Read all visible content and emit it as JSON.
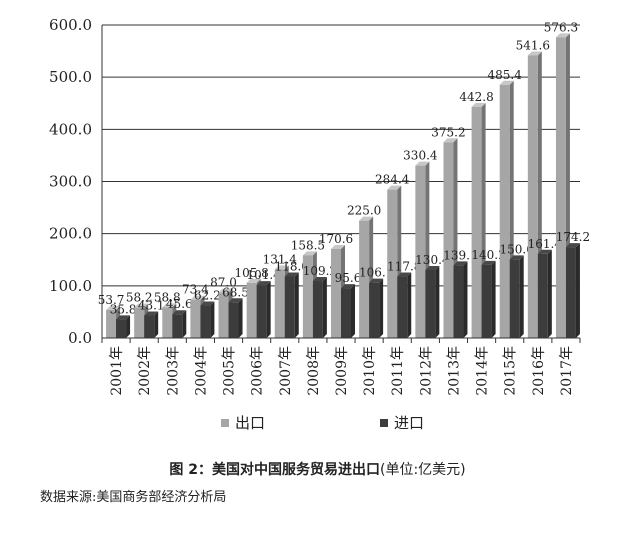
{
  "chart_data": {
    "type": "bar",
    "categories": [
      "2001年",
      "2002年",
      "2003年",
      "2004年",
      "2005年",
      "2006年",
      "2007年",
      "2008年",
      "2009年",
      "2010年",
      "2011年",
      "2012年",
      "2013年",
      "2014年",
      "2015年",
      "2016年",
      "2017年"
    ],
    "series": [
      {
        "name": "出口",
        "color": "#a6a6a6",
        "values": [
          53.7,
          58.2,
          58.8,
          73.4,
          87.0,
          105.8,
          131.4,
          158.5,
          170.6,
          225.0,
          284.4,
          330.4,
          375.2,
          442.8,
          485.4,
          541.6,
          576.3
        ],
        "labels": [
          "53.7",
          "58.2",
          "58.8",
          "73.4",
          "87.0",
          "105.8",
          "131.4",
          "158.5",
          "170.6",
          "225.0",
          "284.4",
          "330.4",
          "375.2",
          "442.8",
          "485.4",
          "541.6",
          "576.3"
        ]
      },
      {
        "name": "进口",
        "color": "#3c3c3c",
        "values": [
          35.8,
          43.1,
          45.6,
          62.2,
          68.5,
          101.4,
          118.0,
          109.2,
          95.6,
          106.1,
          117.8,
          130.4,
          139.1,
          140.2,
          150.6,
          161.4,
          174.2
        ],
        "labels": [
          "35.8",
          "43.1",
          "45.6",
          "62.2",
          "68.5",
          "101.4",
          "118.0",
          "109.2",
          "95.6",
          "106.1",
          "117.8",
          "130.4",
          "139.1",
          "140.2",
          "150.6",
          "161.4",
          "174.2"
        ]
      }
    ],
    "yticks": [
      "0.0",
      "100.0",
      "200.0",
      "300.0",
      "400.0",
      "500.0",
      "600.0"
    ],
    "ylim": [
      0,
      600
    ],
    "legend_position": "bottom"
  },
  "caption": {
    "title": "图 2：美国对中国服务贸易进出口",
    "unit": "(单位:亿美元)"
  },
  "source": "数据来源:美国商务部经济分析局"
}
